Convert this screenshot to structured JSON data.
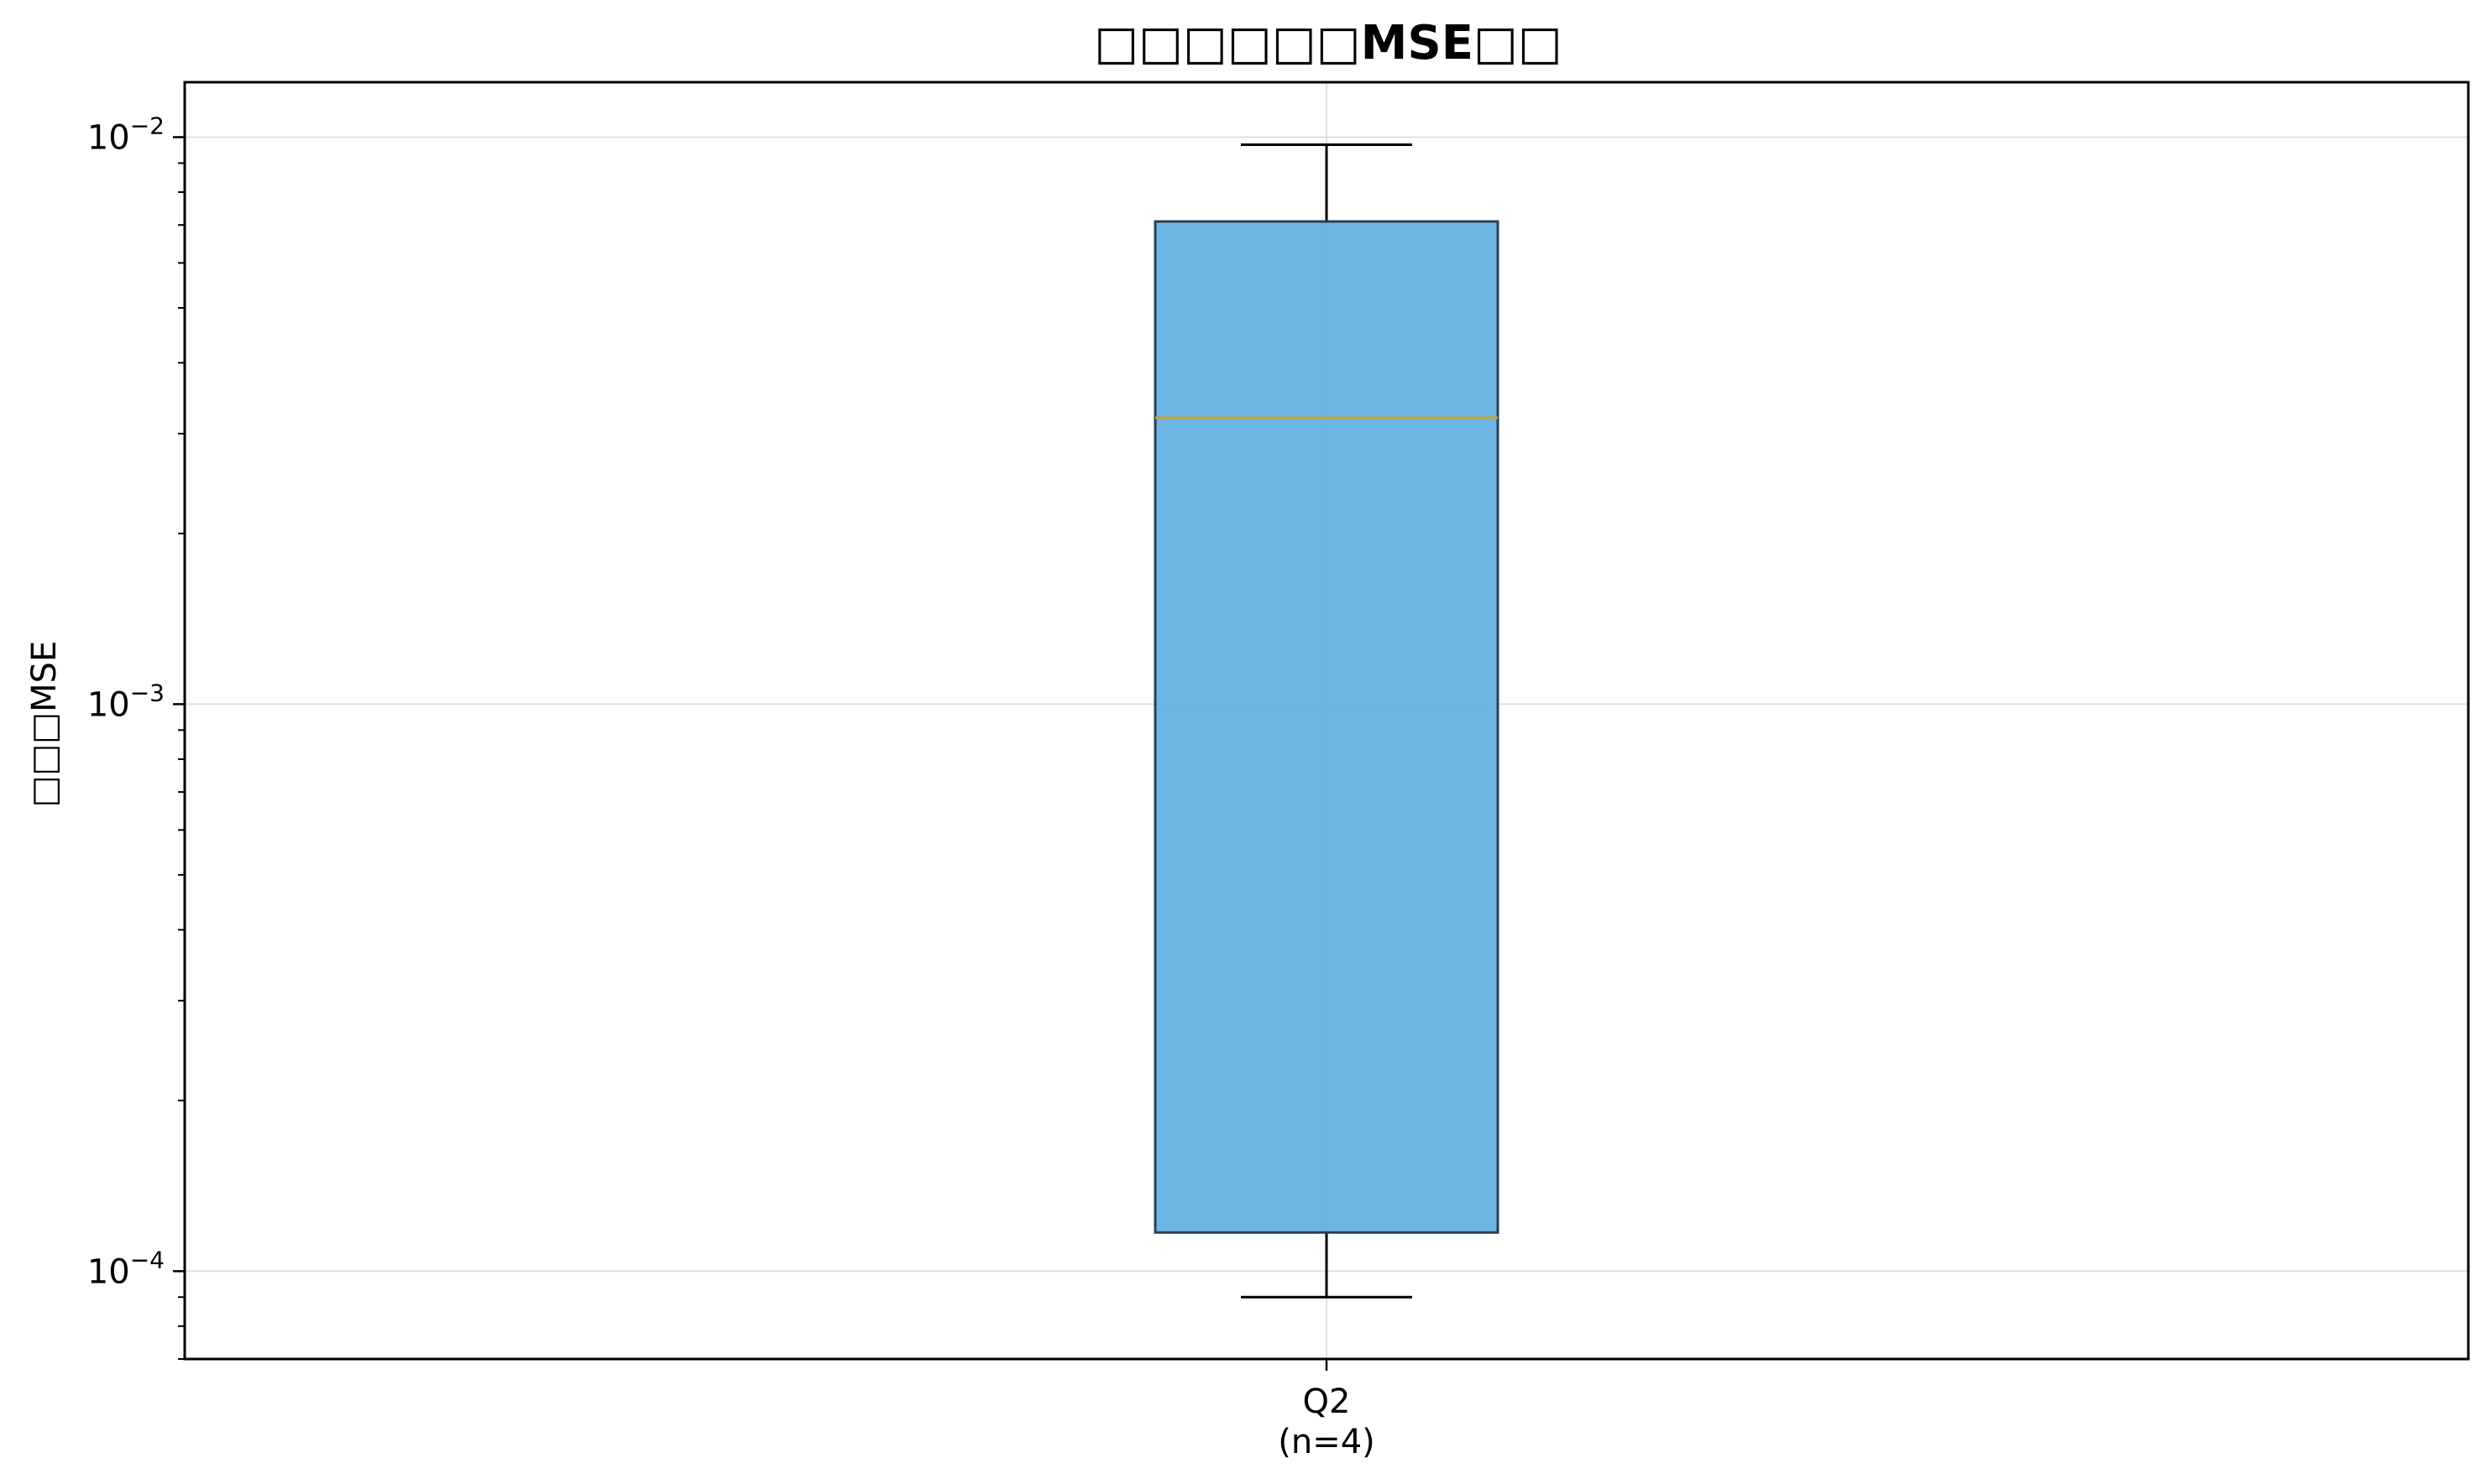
{
  "chart_data": {
    "type": "box",
    "title": "□□□□□□MSE□□",
    "xlabel": "",
    "ylabel": "□□□MSE",
    "yscale": "log",
    "ylim": [
      7e-05,
      0.0125
    ],
    "grid": true,
    "yticks": [
      {
        "value": 0.0001,
        "base": "10",
        "exp": "−4"
      },
      {
        "value": 0.001,
        "base": "10",
        "exp": "−3"
      },
      {
        "value": 0.01,
        "base": "10",
        "exp": "−2"
      }
    ],
    "boxes": [
      {
        "label": "Q2",
        "sublabel": "(n=4)",
        "whisker_low": 9e-05,
        "q1": 0.000117,
        "median": 0.0032,
        "q3": 0.0071,
        "whisker_high": 0.0097
      }
    ],
    "colors": {
      "box_fill": "#5dade2",
      "box_edge": "#2c3e50",
      "median": "#c9a227",
      "whisker": "#000000",
      "grid": "#e0e0e0"
    }
  }
}
